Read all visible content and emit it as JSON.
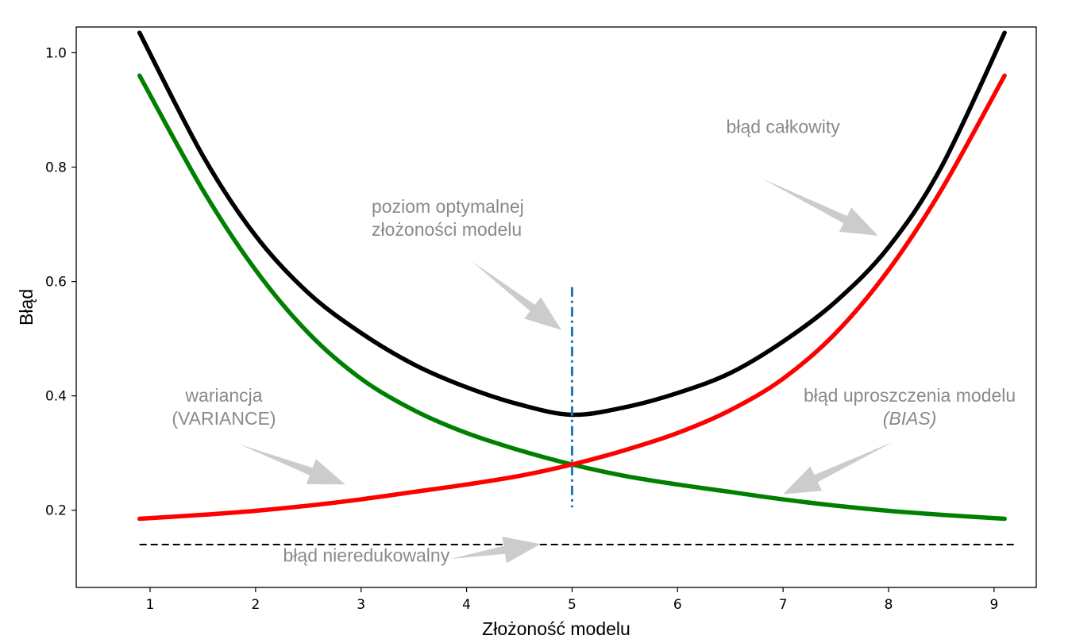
{
  "chart_data": {
    "type": "line",
    "xlabel": "Złożoność modelu",
    "ylabel": "Błąd",
    "xlim": [
      0.3,
      9.4
    ],
    "ylim": [
      0.065,
      1.045
    ],
    "xticks": [
      1,
      2,
      3,
      4,
      5,
      6,
      7,
      8,
      9
    ],
    "yticks": [
      0.2,
      0.4,
      0.6,
      0.8,
      1.0
    ],
    "ytick_labels": [
      "0.2",
      "0.4",
      "0.6",
      "0.8",
      "1.0"
    ],
    "grid": false,
    "series": [
      {
        "key": "variance",
        "color": "#008000",
        "x": [
          0.9,
          1.5,
          2.0,
          2.5,
          3.0,
          3.5,
          4.0,
          4.5,
          5.0,
          5.5,
          6.0,
          6.5,
          7.0,
          7.5,
          8.0,
          8.5,
          9.1
        ],
        "y": [
          0.96,
          0.76,
          0.62,
          0.51,
          0.43,
          0.375,
          0.335,
          0.305,
          0.28,
          0.26,
          0.245,
          0.232,
          0.219,
          0.208,
          0.199,
          0.192,
          0.185
        ]
      },
      {
        "key": "bias",
        "color": "#ff0000",
        "x": [
          0.9,
          1.5,
          2.0,
          2.5,
          3.0,
          3.5,
          4.0,
          4.5,
          5.0,
          5.5,
          6.0,
          6.5,
          7.0,
          7.5,
          8.0,
          8.5,
          9.1
        ],
        "y": [
          0.185,
          0.192,
          0.199,
          0.208,
          0.219,
          0.232,
          0.245,
          0.26,
          0.28,
          0.305,
          0.335,
          0.375,
          0.43,
          0.51,
          0.62,
          0.76,
          0.96
        ]
      },
      {
        "key": "total",
        "color": "#000000",
        "x": [
          0.9,
          1.5,
          2.0,
          2.5,
          3.0,
          3.5,
          4.0,
          4.5,
          5.0,
          5.5,
          6.0,
          6.5,
          7.0,
          7.5,
          8.0,
          8.5,
          9.1
        ],
        "y": [
          1.035,
          0.82,
          0.68,
          0.58,
          0.51,
          0.455,
          0.415,
          0.385,
          0.367,
          0.38,
          0.405,
          0.44,
          0.495,
          0.565,
          0.66,
          0.8,
          1.035
        ]
      }
    ],
    "irreducible_error": {
      "y": 0.14,
      "x_range": [
        0.9,
        9.2
      ],
      "color": "#000000",
      "style": "dashed"
    },
    "optimal_line": {
      "x": 5,
      "y_range": [
        0.205,
        0.59
      ],
      "color": "#1f77b4",
      "style": "dashdot"
    },
    "annotations": [
      {
        "key": "total",
        "lines": [
          "błąd całkowity"
        ],
        "italic": [
          false
        ],
        "align": "middle",
        "text_at": [
          7.0,
          0.86
        ],
        "arrow_from": [
          6.8,
          0.78
        ],
        "arrow_to": [
          7.9,
          0.68
        ]
      },
      {
        "key": "optimal",
        "lines": [
          "poziom optymalnej",
          "złożoności modelu"
        ],
        "italic": [
          false,
          false
        ],
        "align": "start",
        "text_at": [
          3.1,
          0.72
        ],
        "arrow_from": [
          4.05,
          0.635
        ],
        "arrow_to": [
          4.9,
          0.515
        ]
      },
      {
        "key": "variance",
        "lines": [
          "wariancja",
          "(VARIANCE)"
        ],
        "italic": [
          false,
          false
        ],
        "align": "middle",
        "text_at": [
          1.7,
          0.39
        ],
        "arrow_from": [
          1.85,
          0.315
        ],
        "arrow_to": [
          2.85,
          0.245
        ]
      },
      {
        "key": "bias",
        "lines": [
          "błąd uproszczenia modelu",
          "(BIAS)"
        ],
        "italic": [
          false,
          true
        ],
        "align": "middle",
        "text_at": [
          8.2,
          0.39
        ],
        "arrow_from": [
          8.05,
          0.32
        ],
        "arrow_to": [
          7.0,
          0.228
        ]
      },
      {
        "key": "irreducible",
        "lines": [
          "błąd nieredukowalny"
        ],
        "italic": [
          false
        ],
        "align": "middle",
        "text_at": [
          3.05,
          0.11
        ],
        "arrow_from": [
          3.85,
          0.115
        ],
        "arrow_to": [
          4.7,
          0.141
        ]
      }
    ]
  }
}
